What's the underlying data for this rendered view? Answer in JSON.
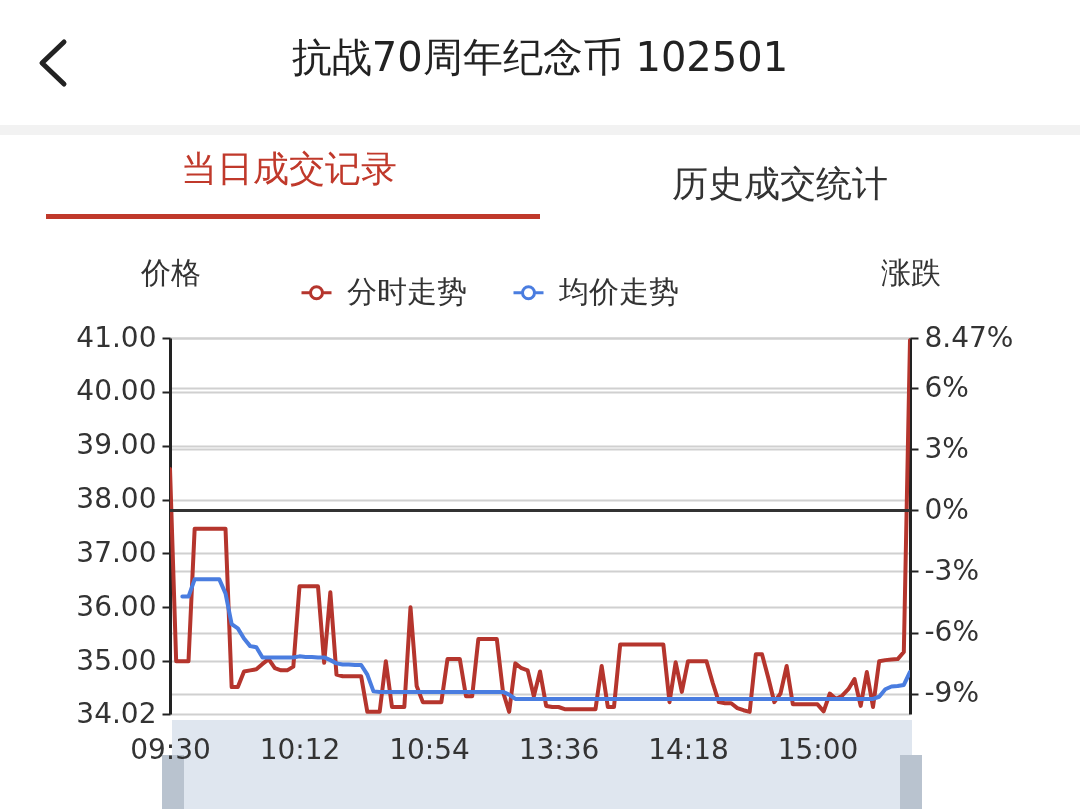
{
  "chart_data": {
    "type": "line",
    "title": "抗战70周年纪念币 102501",
    "annotations": [
      "当日成交记录",
      "历史成交统计"
    ],
    "ylabel": "价格",
    "y2label": "涨跌",
    "categories": [
      "09:30",
      null,
      null,
      null,
      null,
      null,
      null,
      null,
      null,
      null,
      null,
      null,
      null,
      null,
      null,
      null,
      null,
      null,
      null,
      null,
      null,
      "10:12",
      null,
      null,
      null,
      null,
      null,
      null,
      null,
      null,
      null,
      null,
      null,
      null,
      null,
      null,
      null,
      null,
      null,
      null,
      null,
      null,
      "10:54",
      null,
      null,
      null,
      null,
      null,
      null,
      null,
      null,
      null,
      null,
      null,
      null,
      null,
      null,
      null,
      null,
      null,
      null,
      null,
      null,
      "13:36",
      null,
      null,
      null,
      null,
      null,
      null,
      null,
      null,
      null,
      null,
      null,
      null,
      null,
      null,
      null,
      null,
      null,
      null,
      null,
      null,
      "14:18",
      null,
      null,
      null,
      null,
      null,
      null,
      null,
      null,
      null,
      null,
      null,
      null,
      null,
      null,
      null,
      null,
      null,
      null,
      null,
      null,
      "15:00",
      null,
      null,
      null,
      null,
      null,
      null,
      null,
      null,
      null,
      null,
      null,
      null,
      null,
      null,
      null
    ],
    "ylim": [
      34.02,
      41.0
    ],
    "yticks": [
      {
        "value": 34.02,
        "label": "34.02"
      },
      {
        "value": 35,
        "label": "35.00"
      },
      {
        "value": 36,
        "label": "36.00"
      },
      {
        "value": 37,
        "label": "37.00"
      },
      {
        "value": 38,
        "label": "38.00"
      },
      {
        "value": 39,
        "label": "39.00"
      },
      {
        "value": 40,
        "label": "40.00"
      },
      {
        "value": 41,
        "label": "41.00"
      }
    ],
    "y2lim": [
      -10,
      8.47
    ],
    "y2ticks": [
      {
        "value": -9,
        "label": "-9%"
      },
      {
        "value": -6,
        "label": "-6%"
      },
      {
        "value": -3,
        "label": "-3%"
      },
      {
        "value": 0,
        "label": "0%"
      },
      {
        "value": 3,
        "label": "3%"
      },
      {
        "value": 6,
        "label": "6%"
      },
      {
        "value": 8.47,
        "label": "8.47%"
      }
    ],
    "ref_lines": [
      {
        "axis": "y2",
        "value": 0,
        "color": "#333333"
      }
    ],
    "grid": "y",
    "legend": "top",
    "line_style": "solid",
    "series": [
      {
        "name": "分时走势",
        "color": "#b5352d",
        "values": [
          38.57,
          35.0,
          35.0,
          35.0,
          37.46,
          37.46,
          37.46,
          37.46,
          37.46,
          37.46,
          34.52,
          34.52,
          34.81,
          34.83,
          34.85,
          34.95,
          35.04,
          34.87,
          34.83,
          34.83,
          34.9,
          36.39,
          36.39,
          36.39,
          36.39,
          34.97,
          36.28,
          34.75,
          34.72,
          34.72,
          34.72,
          34.72,
          34.06,
          34.06,
          34.06,
          35.0,
          34.15,
          34.15,
          34.15,
          36.0,
          34.54,
          34.24,
          34.24,
          34.24,
          34.24,
          35.04,
          35.04,
          35.04,
          34.35,
          34.35,
          35.41,
          35.41,
          35.41,
          35.41,
          34.43,
          34.06,
          34.96,
          34.87,
          34.83,
          34.35,
          34.81,
          34.17,
          34.15,
          34.15,
          34.11,
          34.11,
          34.11,
          34.11,
          34.11,
          34.11,
          34.91,
          34.15,
          34.15,
          35.31,
          35.31,
          35.31,
          35.31,
          35.31,
          35.31,
          35.31,
          35.31,
          34.24,
          34.98,
          34.43,
          35.0,
          35.0,
          35.0,
          35.0,
          34.6,
          34.24,
          34.22,
          34.22,
          34.13,
          34.09,
          34.06,
          35.13,
          35.13,
          34.7,
          34.24,
          34.4,
          34.91,
          34.2,
          34.2,
          34.2,
          34.2,
          34.2,
          34.07,
          34.4,
          34.3,
          34.36,
          34.48,
          34.67,
          34.17,
          34.8,
          34.15,
          35.0,
          35.02,
          35.03,
          35.04,
          35.17,
          40.96
        ]
      },
      {
        "name": "均价走势",
        "color": "#4a7de0",
        "values": [
          null,
          null,
          36.2,
          36.2,
          36.52,
          36.52,
          36.52,
          36.52,
          36.52,
          36.26,
          35.69,
          35.61,
          35.42,
          35.28,
          35.26,
          35.07,
          35.07,
          35.07,
          35.07,
          35.07,
          35.07,
          35.09,
          35.08,
          35.08,
          35.07,
          35.07,
          35.02,
          34.96,
          34.94,
          34.94,
          34.93,
          34.93,
          34.75,
          34.44,
          34.43,
          34.43,
          34.43,
          34.43,
          34.43,
          34.43,
          34.43,
          34.43,
          34.43,
          34.43,
          34.43,
          34.43,
          34.43,
          34.43,
          34.43,
          34.43,
          34.43,
          34.43,
          34.43,
          34.43,
          34.43,
          34.38,
          34.3,
          34.3,
          34.3,
          34.3,
          34.3,
          34.3,
          34.3,
          34.3,
          34.3,
          34.3,
          34.3,
          34.3,
          34.3,
          34.3,
          34.3,
          34.3,
          34.3,
          34.3,
          34.3,
          34.3,
          34.3,
          34.3,
          34.3,
          34.3,
          34.3,
          34.3,
          34.3,
          34.3,
          34.3,
          34.3,
          34.3,
          34.3,
          34.3,
          34.3,
          34.3,
          34.3,
          34.3,
          34.3,
          34.3,
          34.3,
          34.3,
          34.3,
          34.3,
          34.3,
          34.3,
          34.3,
          34.3,
          34.3,
          34.3,
          34.3,
          34.3,
          34.3,
          34.3,
          34.3,
          34.3,
          34.3,
          34.3,
          34.3,
          34.3,
          34.34,
          34.48,
          34.53,
          34.54,
          34.56,
          34.8
        ]
      }
    ]
  }
}
